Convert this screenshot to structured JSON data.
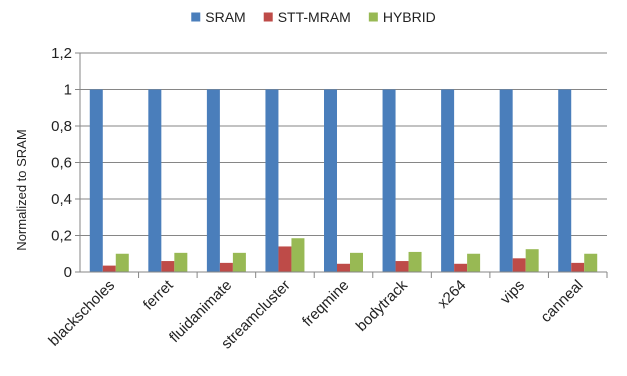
{
  "chart_data": {
    "type": "bar",
    "title": "",
    "xlabel": "",
    "ylabel": "Normalized to SRAM",
    "ylim": [
      0,
      1.2
    ],
    "yticks": [
      "0",
      "0,2",
      "0,4",
      "0,6",
      "0,8",
      "1",
      "1,2"
    ],
    "grid": true,
    "legend_position": "top",
    "categories": [
      "blackscholes",
      "ferret",
      "fluidanimate",
      "streamcluster",
      "freqmine",
      "bodytrack",
      "x264",
      "vips",
      "canneal"
    ],
    "series": [
      {
        "name": "SRAM",
        "color": "#4a7ebb",
        "values": [
          1,
          1,
          1,
          1,
          1,
          1,
          1,
          1,
          1
        ]
      },
      {
        "name": "STT-MRAM",
        "color": "#be4b48",
        "values": [
          0.035,
          0.06,
          0.05,
          0.14,
          0.045,
          0.06,
          0.045,
          0.075,
          0.05
        ]
      },
      {
        "name": "HYBRID",
        "color": "#98b954",
        "values": [
          0.1,
          0.105,
          0.105,
          0.185,
          0.105,
          0.11,
          0.1,
          0.125,
          0.1
        ]
      }
    ]
  }
}
